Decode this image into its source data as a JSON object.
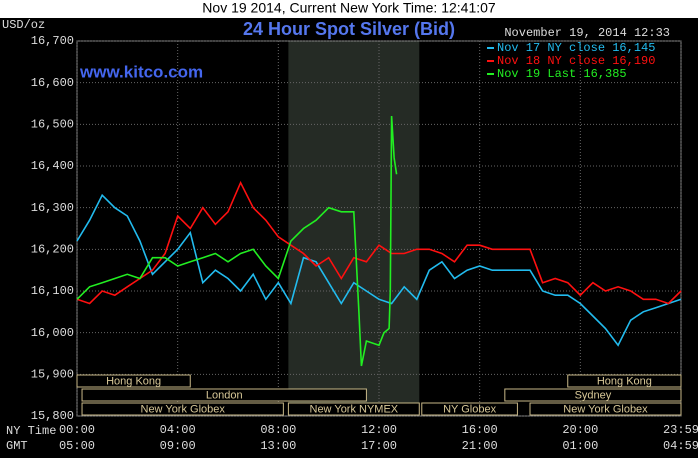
{
  "chart_data": {
    "type": "line",
    "header": "Nov 19 2014, Current New York Time: 12:41:07",
    "title": "24 Hour Spot Silver (Bid)",
    "y_label": "USD/oz",
    "watermark": "www.kitco.com",
    "timestamp": "November 19, 2014 12:33",
    "x_label": "NY Time",
    "x2_label": "GMT",
    "xlim": [
      0,
      24
    ],
    "xticks": [
      {
        "value": 0,
        "label": "00:00"
      },
      {
        "value": 4,
        "label": "04:00"
      },
      {
        "value": 8,
        "label": "08:00"
      },
      {
        "value": 12,
        "label": "12:00"
      },
      {
        "value": 16,
        "label": "16:00"
      },
      {
        "value": 20,
        "label": "20:00"
      },
      {
        "value": 24,
        "label": "23:59"
      }
    ],
    "x2ticks": [
      "05:00",
      "09:00",
      "13:00",
      "17:00",
      "21:00",
      "01:00",
      "04:59"
    ],
    "ylim": [
      15.8,
      16.7
    ],
    "yticks": [
      {
        "value": 15.8,
        "label": "15,800"
      },
      {
        "value": 15.9,
        "label": "15,900"
      },
      {
        "value": 16.0,
        "label": "16,000"
      },
      {
        "value": 16.1,
        "label": "16,100"
      },
      {
        "value": 16.2,
        "label": "16,200"
      },
      {
        "value": 16.3,
        "label": "16,300"
      },
      {
        "value": 16.4,
        "label": "16,400"
      },
      {
        "value": 16.5,
        "label": "16,500"
      },
      {
        "value": 16.6,
        "label": "16,600"
      },
      {
        "value": 16.7,
        "label": "16,700"
      }
    ],
    "grid": true,
    "shaded_range": [
      8.4,
      13.6
    ],
    "sessions": [
      {
        "label": "Hong Kong",
        "start": 0,
        "end": 4.5
      },
      {
        "label": "London",
        "start": 0.2,
        "end": 11.5
      },
      {
        "label": "New York Globex",
        "start": 0.2,
        "end": 8.2
      },
      {
        "label": "New York NYMEX",
        "start": 8.4,
        "end": 13.6
      },
      {
        "label": "NY Globex",
        "start": 13.7,
        "end": 17.5
      },
      {
        "label": "Sydney",
        "start": 17,
        "end": 24
      },
      {
        "label": "Hong Kong",
        "start": 19.5,
        "end": 24
      },
      {
        "label": "New York Globex",
        "start": 18,
        "end": 24
      }
    ],
    "series": [
      {
        "name": "Nov 17 NY close 16,145",
        "color": "#22bbee",
        "x": [
          0,
          0.5,
          1,
          1.5,
          2,
          2.5,
          3,
          3.5,
          4,
          4.5,
          5,
          5.5,
          6,
          6.5,
          7,
          7.5,
          8,
          8.5,
          9,
          9.5,
          10,
          10.5,
          11,
          11.5,
          12,
          12.5,
          13,
          13.5,
          14,
          14.5,
          15,
          15.5,
          16,
          16.5,
          17,
          17.5,
          18,
          18.5,
          19,
          19.5,
          20,
          20.5,
          21,
          21.5,
          22,
          22.5,
          23,
          23.5,
          24
        ],
        "values": [
          16.22,
          16.27,
          16.33,
          16.3,
          16.28,
          16.22,
          16.14,
          16.17,
          16.2,
          16.24,
          16.12,
          16.15,
          16.13,
          16.1,
          16.14,
          16.08,
          16.12,
          16.07,
          16.18,
          16.17,
          16.12,
          16.07,
          16.12,
          16.1,
          16.08,
          16.07,
          16.11,
          16.08,
          16.15,
          16.17,
          16.13,
          16.15,
          16.16,
          16.15,
          16.15,
          16.15,
          16.15,
          16.1,
          16.09,
          16.09,
          16.07,
          16.04,
          16.01,
          15.97,
          16.03,
          16.05,
          16.06,
          16.07,
          16.08
        ]
      },
      {
        "name": "Nov 18 NY close 16,190",
        "color": "#ff1010",
        "x": [
          0,
          0.5,
          1,
          1.5,
          2,
          2.5,
          3,
          3.5,
          4,
          4.5,
          5,
          5.5,
          6,
          6.5,
          7,
          7.5,
          8,
          8.5,
          9,
          9.5,
          10,
          10.5,
          11,
          11.5,
          12,
          12.5,
          13,
          13.5,
          14,
          14.5,
          15,
          15.5,
          16,
          16.5,
          17,
          17.5,
          18,
          18.5,
          19,
          19.5,
          20,
          20.5,
          21,
          21.5,
          22,
          22.5,
          23,
          23.5,
          24
        ],
        "values": [
          16.08,
          16.07,
          16.1,
          16.09,
          16.11,
          16.13,
          16.15,
          16.19,
          16.28,
          16.25,
          16.3,
          16.26,
          16.29,
          16.36,
          16.3,
          16.27,
          16.23,
          16.21,
          16.19,
          16.16,
          16.18,
          16.13,
          16.18,
          16.17,
          16.21,
          16.19,
          16.19,
          16.2,
          16.2,
          16.19,
          16.17,
          16.21,
          16.21,
          16.2,
          16.2,
          16.2,
          16.2,
          16.12,
          16.13,
          16.12,
          16.09,
          16.12,
          16.1,
          16.11,
          16.1,
          16.08,
          16.08,
          16.07,
          16.1
        ]
      },
      {
        "name": "Nov 19 Last 16,385",
        "color": "#22ee22",
        "x": [
          0,
          0.5,
          1,
          1.5,
          2,
          2.5,
          3,
          3.5,
          4,
          4.5,
          5,
          5.5,
          6,
          6.5,
          7,
          7.5,
          8,
          8.5,
          9,
          9.5,
          10,
          10.5,
          11,
          11.2,
          11.3,
          11.5,
          12,
          12.2,
          12.4,
          12.45,
          12.5,
          12.6,
          12.7
        ],
        "values": [
          16.08,
          16.11,
          16.12,
          16.13,
          16.14,
          16.13,
          16.18,
          16.18,
          16.16,
          16.17,
          16.18,
          16.19,
          16.17,
          16.19,
          16.2,
          16.16,
          16.13,
          16.22,
          16.25,
          16.27,
          16.3,
          16.29,
          16.29,
          16.05,
          15.92,
          15.98,
          15.97,
          16.0,
          16.01,
          16.1,
          16.52,
          16.42,
          16.38
        ]
      }
    ]
  }
}
